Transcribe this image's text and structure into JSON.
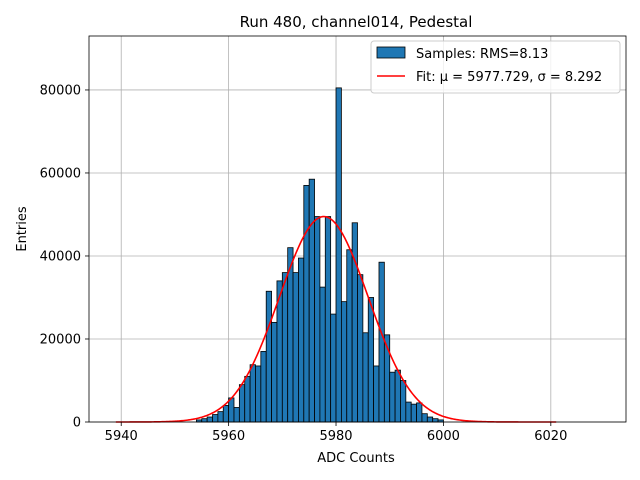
{
  "chart_data": {
    "type": "bar",
    "title": "Run 480, channel014, Pedestal",
    "xlabel": "ADC Counts",
    "ylabel": "Entries",
    "xlim": [
      5934,
      6034
    ],
    "ylim": [
      0,
      93000
    ],
    "x_ticks": [
      5940,
      5960,
      5980,
      6000,
      6020
    ],
    "y_ticks": [
      0,
      20000,
      40000,
      60000,
      80000
    ],
    "grid": true,
    "legend_position": "top-right",
    "colors": {
      "bars": "#1f77b4",
      "bar_edge": "#000000",
      "fit": "#ff0000",
      "grid": "#b0b0b0"
    },
    "histogram": {
      "name": "Samples: RMS=8.13",
      "bin_width": 1,
      "bins": [
        {
          "x": 5954,
          "y": 500
        },
        {
          "x": 5955,
          "y": 800
        },
        {
          "x": 5956,
          "y": 1200
        },
        {
          "x": 5957,
          "y": 1800
        },
        {
          "x": 5958,
          "y": 2500
        },
        {
          "x": 5959,
          "y": 4000
        },
        {
          "x": 5960,
          "y": 5800
        },
        {
          "x": 5961,
          "y": 3500
        },
        {
          "x": 5962,
          "y": 9000
        },
        {
          "x": 5963,
          "y": 11000
        },
        {
          "x": 5964,
          "y": 13800
        },
        {
          "x": 5965,
          "y": 13500
        },
        {
          "x": 5966,
          "y": 17000
        },
        {
          "x": 5967,
          "y": 31500
        },
        {
          "x": 5968,
          "y": 24000
        },
        {
          "x": 5969,
          "y": 34000
        },
        {
          "x": 5970,
          "y": 36000
        },
        {
          "x": 5971,
          "y": 42000
        },
        {
          "x": 5972,
          "y": 36000
        },
        {
          "x": 5973,
          "y": 39500
        },
        {
          "x": 5974,
          "y": 57000
        },
        {
          "x": 5975,
          "y": 58500
        },
        {
          "x": 5976,
          "y": 49500
        },
        {
          "x": 5977,
          "y": 32500
        },
        {
          "x": 5978,
          "y": 49500
        },
        {
          "x": 5979,
          "y": 26000
        },
        {
          "x": 5980,
          "y": 80500
        },
        {
          "x": 5981,
          "y": 29000
        },
        {
          "x": 5982,
          "y": 41500
        },
        {
          "x": 5983,
          "y": 48000
        },
        {
          "x": 5984,
          "y": 35500
        },
        {
          "x": 5985,
          "y": 21500
        },
        {
          "x": 5986,
          "y": 30000
        },
        {
          "x": 5987,
          "y": 13500
        },
        {
          "x": 5988,
          "y": 38500
        },
        {
          "x": 5989,
          "y": 21000
        },
        {
          "x": 5990,
          "y": 12000
        },
        {
          "x": 5991,
          "y": 12500
        },
        {
          "x": 5992,
          "y": 10000
        },
        {
          "x": 5993,
          "y": 4800
        },
        {
          "x": 5994,
          "y": 4300
        },
        {
          "x": 5995,
          "y": 4600
        },
        {
          "x": 5996,
          "y": 2000
        },
        {
          "x": 5997,
          "y": 1200
        },
        {
          "x": 5998,
          "y": 800
        },
        {
          "x": 5999,
          "y": 500
        }
      ]
    },
    "fit": {
      "name": "Fit: μ = 5977.729, σ = 8.292",
      "mu": 5977.729,
      "sigma": 8.292,
      "amplitude": 49500,
      "x_range": [
        5939,
        6021
      ]
    }
  }
}
